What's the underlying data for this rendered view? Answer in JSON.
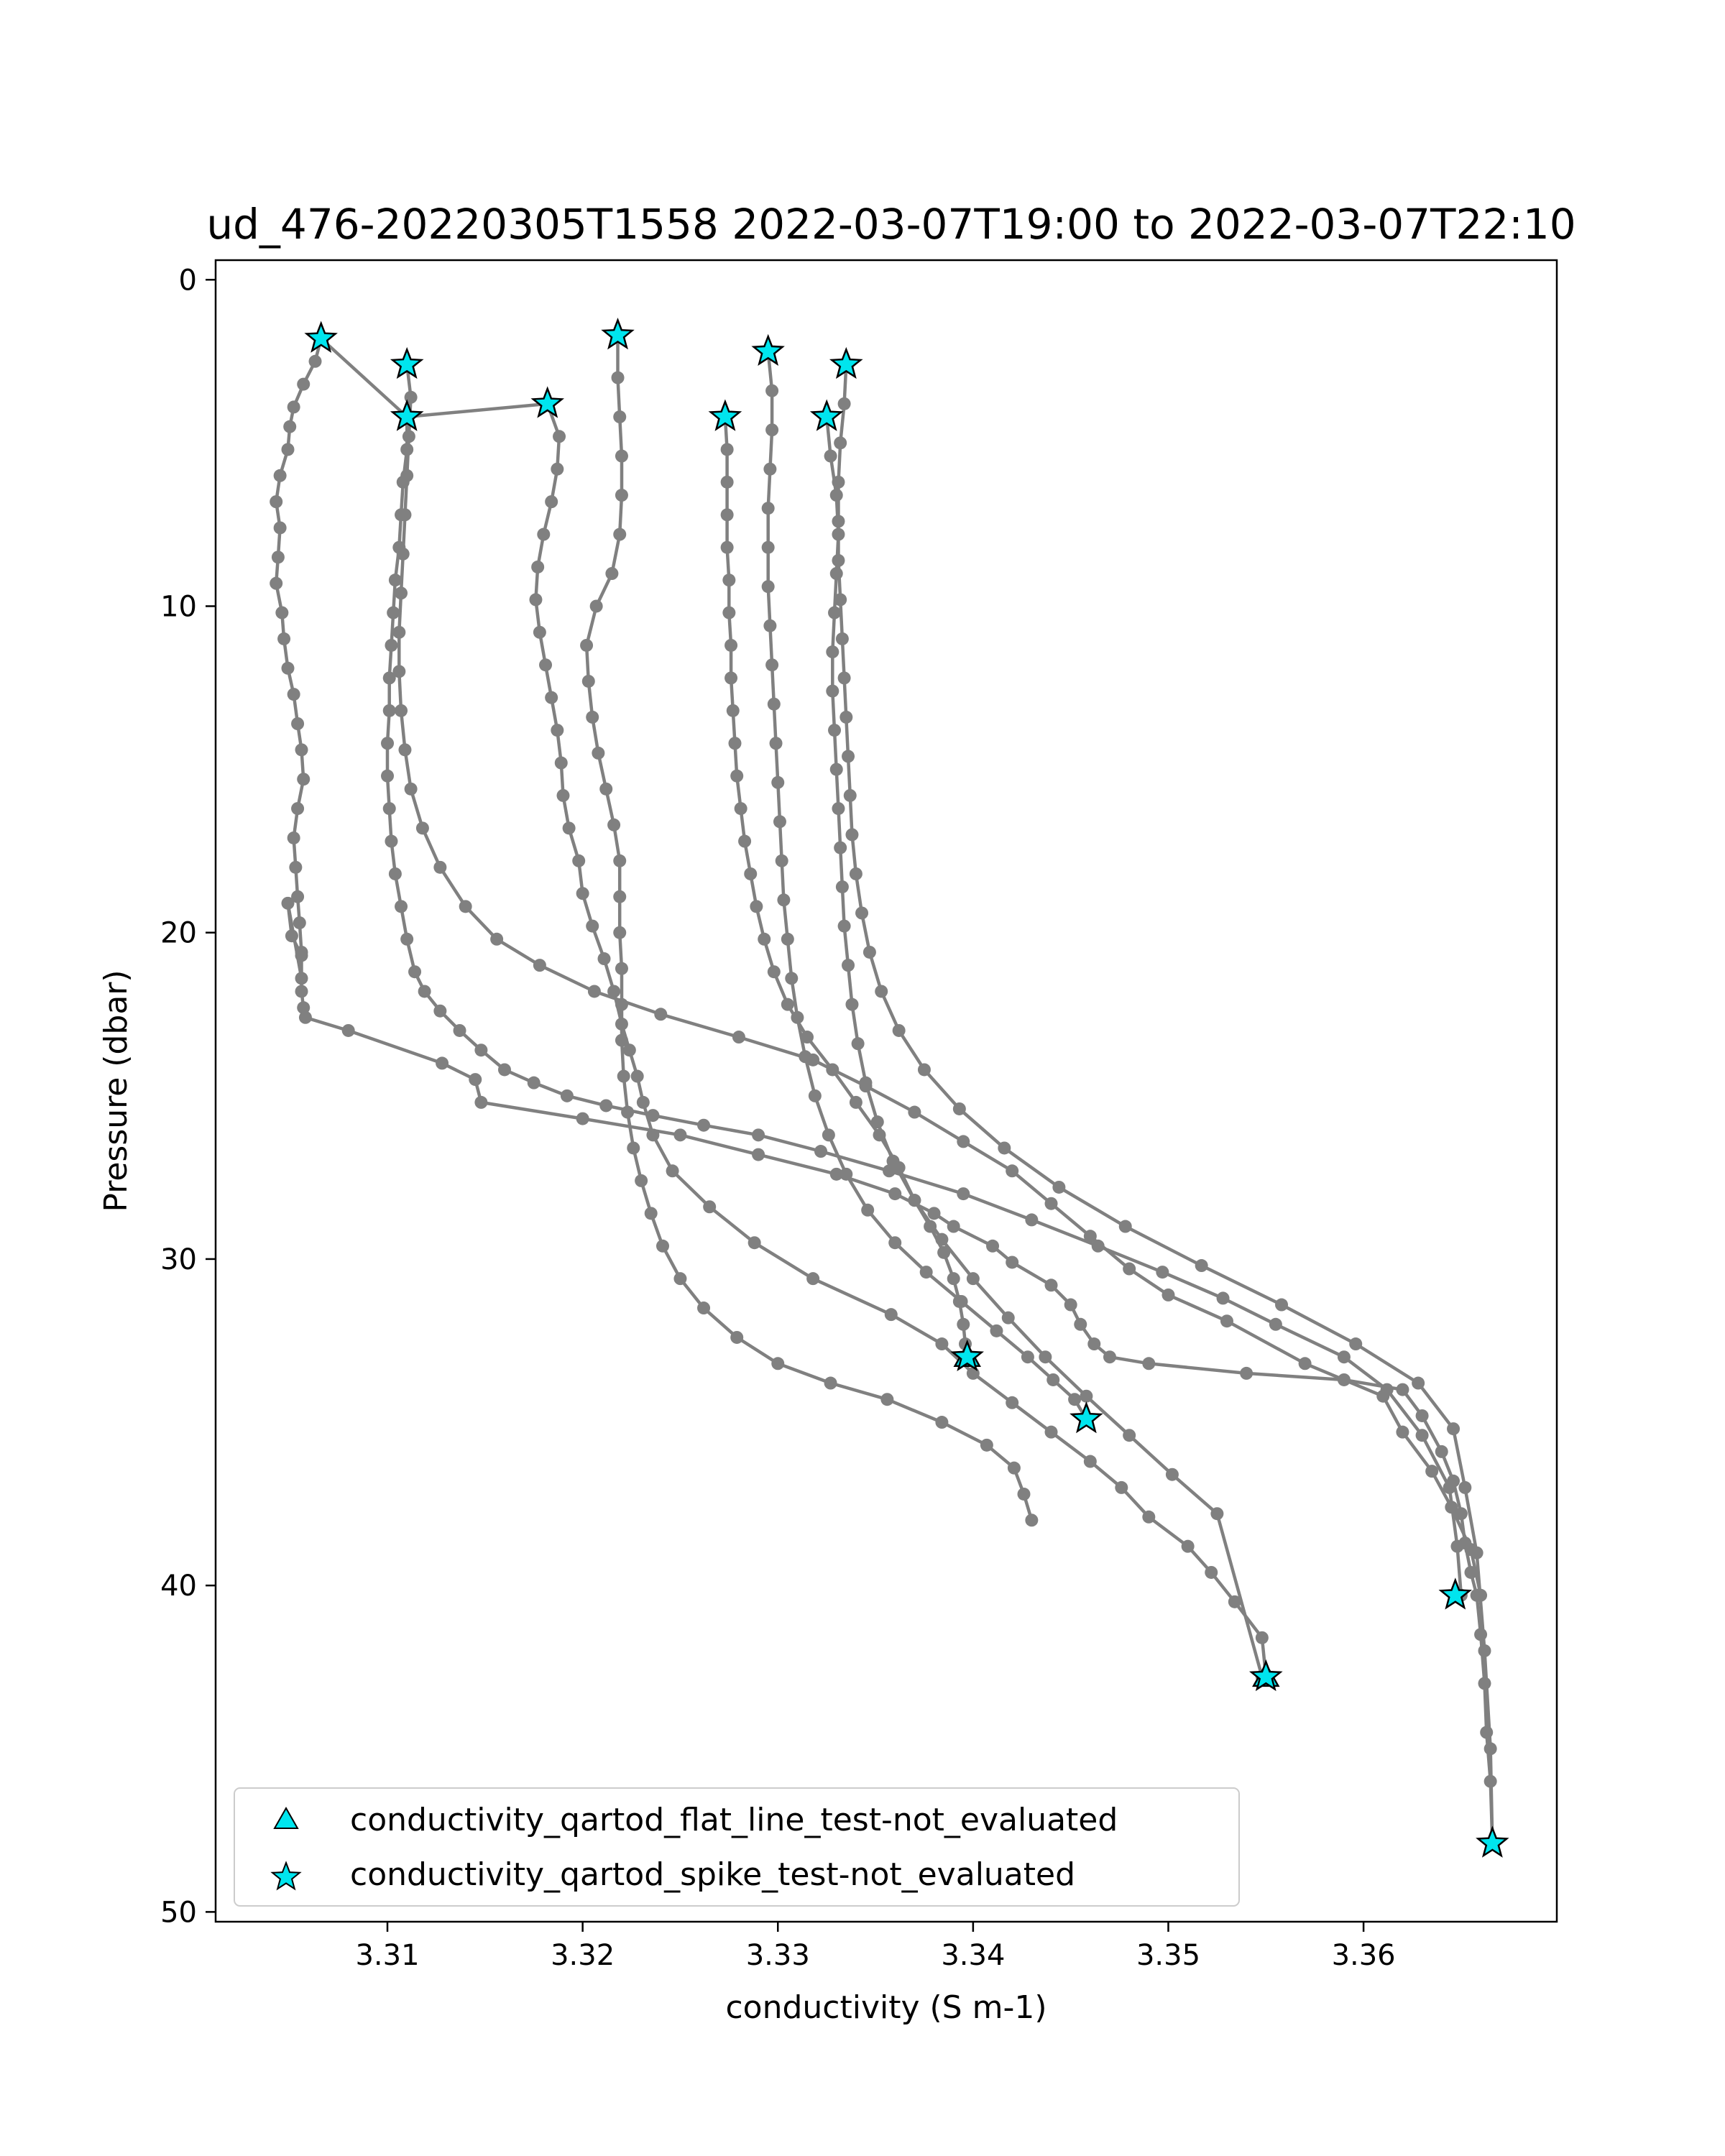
{
  "chart_data": {
    "type": "line",
    "title": "ud_476-20220305T1558 2022-03-07T19:00 to 2022-03-07T22:10",
    "xlabel": "conductivity (S m-1)",
    "ylabel": "Pressure (dbar)",
    "xlim": [
      3.3012,
      3.3699
    ],
    "ylim": [
      50.3,
      -0.6
    ],
    "y_inverted": true,
    "xticks": [
      3.31,
      3.32,
      3.33,
      3.34,
      3.35,
      3.36
    ],
    "xtick_labels": [
      "3.31",
      "3.32",
      "3.33",
      "3.34",
      "3.35",
      "3.36"
    ],
    "yticks": [
      0,
      10,
      20,
      30,
      40,
      50
    ],
    "ytick_labels": [
      "0",
      "10",
      "20",
      "30",
      "40",
      "50"
    ],
    "grid": false,
    "legend_position": "lower-left",
    "colors": {
      "profile_line": "#808080",
      "marker_fill": "#00e5ee",
      "marker_edge": "#000000"
    },
    "series": [
      {
        "x": [
          3.3066,
          3.3063,
          3.3057,
          3.3052,
          3.305,
          3.3049,
          3.3045,
          3.3043,
          3.3045,
          3.3044,
          3.3043,
          3.3046,
          3.3047,
          3.3049,
          3.3052,
          3.3054,
          3.3056,
          3.3057,
          3.3054,
          3.3052,
          3.3053,
          3.3054,
          3.3055,
          3.3056,
          3.3056,
          3.3049,
          3.3051,
          3.3056,
          3.3056,
          3.3057,
          3.3058,
          3.308,
          3.3128,
          3.3145,
          3.3148,
          3.32,
          3.325,
          3.329,
          3.333,
          3.336,
          3.338,
          3.339,
          3.341,
          3.342,
          3.344,
          3.345,
          3.3455,
          3.3462,
          3.347,
          3.349,
          3.354,
          3.359,
          3.362,
          3.363,
          3.364,
          3.3646,
          3.365,
          3.3652,
          3.3655,
          3.3658,
          3.366,
          3.3662,
          3.3663,
          3.3665,
          3.3666
        ],
        "y": [
          1.8,
          2.5,
          3.2,
          3.9,
          4.5,
          5.2,
          6.0,
          6.8,
          7.6,
          8.5,
          9.3,
          10.2,
          11.0,
          11.9,
          12.7,
          13.6,
          14.4,
          15.3,
          16.2,
          17.1,
          18.0,
          18.9,
          19.7,
          20.6,
          21.4,
          19.1,
          20.1,
          20.7,
          21.8,
          22.3,
          22.6,
          23.0,
          24.0,
          24.5,
          25.2,
          25.7,
          26.2,
          26.8,
          27.4,
          28.0,
          28.6,
          29.0,
          29.6,
          30.1,
          30.8,
          31.4,
          32.0,
          32.6,
          33.0,
          33.2,
          33.5,
          33.7,
          34.0,
          34.8,
          35.9,
          36.8,
          37.8,
          38.7,
          39.6,
          40.3,
          41.5,
          43.0,
          44.5,
          46.0,
          47.9
        ]
      },
      {
        "x": [
          3.3066,
          3.311,
          3.311,
          3.3108,
          3.3107,
          3.3106,
          3.3104,
          3.3103,
          3.3102,
          3.3101,
          3.3101,
          3.31,
          3.31,
          3.3101,
          3.3102,
          3.3104,
          3.3107,
          3.311,
          3.3114,
          3.3119,
          3.3127,
          3.3137,
          3.3148,
          3.316,
          3.3175,
          3.3192,
          3.3212,
          3.3236,
          3.3262,
          3.329,
          3.3322,
          3.3357,
          3.3395,
          3.343,
          3.3464,
          3.3497,
          3.3528,
          3.3555,
          3.359,
          3.3612,
          3.363,
          3.3644,
          3.3648,
          3.365
        ],
        "y": [
          1.8,
          4.2,
          5.2,
          6.2,
          7.2,
          8.2,
          9.2,
          10.2,
          11.2,
          12.2,
          13.2,
          14.2,
          15.2,
          16.2,
          17.2,
          18.2,
          19.2,
          20.2,
          21.2,
          21.8,
          22.4,
          23.0,
          23.6,
          24.2,
          24.6,
          25.0,
          25.3,
          25.6,
          25.9,
          26.2,
          26.7,
          27.3,
          28.0,
          28.8,
          29.6,
          30.4,
          31.2,
          32.0,
          33.0,
          34.0,
          35.4,
          37.0,
          38.8,
          40.3
        ]
      },
      {
        "x": [
          3.311,
          3.3112,
          3.3111,
          3.311,
          3.3109,
          3.3108,
          3.3107,
          3.3106,
          3.3106,
          3.3107,
          3.3109,
          3.3112,
          3.3118,
          3.3127,
          3.314,
          3.3156,
          3.3178,
          3.3206,
          3.324,
          3.328,
          3.3318,
          3.3345,
          3.337,
          3.3395,
          3.342,
          3.344,
          3.346,
          3.348,
          3.35,
          3.353,
          3.357,
          3.361,
          3.362,
          3.3635,
          3.3645,
          3.3655,
          3.366
        ],
        "y": [
          2.6,
          3.6,
          4.8,
          6.0,
          7.2,
          8.4,
          9.6,
          10.8,
          12.0,
          13.2,
          14.4,
          15.6,
          16.8,
          18.0,
          19.2,
          20.2,
          21.0,
          21.8,
          22.5,
          23.2,
          23.9,
          24.7,
          25.5,
          26.4,
          27.3,
          28.3,
          29.3,
          30.3,
          31.1,
          31.9,
          33.2,
          34.2,
          35.3,
          36.5,
          37.6,
          38.9,
          40.3
        ]
      },
      {
        "x": [
          3.311,
          3.3182,
          3.3188,
          3.3187,
          3.3184,
          3.318,
          3.3177,
          3.3176,
          3.3178,
          3.3181,
          3.3184,
          3.3187,
          3.3189,
          3.319,
          3.3193,
          3.3198,
          3.32,
          3.3205,
          3.3211,
          3.3216,
          3.322,
          3.3224,
          3.3228,
          3.3231,
          3.3236,
          3.3246,
          3.3265,
          3.3288,
          3.3318,
          3.3358,
          3.3384,
          3.34,
          3.342,
          3.344,
          3.346,
          3.3476,
          3.349,
          3.351,
          3.3522,
          3.3534,
          3.3548,
          3.355
        ],
        "y": [
          4.2,
          3.8,
          4.8,
          5.8,
          6.8,
          7.8,
          8.8,
          9.8,
          10.8,
          11.8,
          12.8,
          13.8,
          14.8,
          15.8,
          16.8,
          17.8,
          18.8,
          19.8,
          20.8,
          21.8,
          22.8,
          23.6,
          24.4,
          25.2,
          26.2,
          27.3,
          28.4,
          29.5,
          30.6,
          31.7,
          32.6,
          33.5,
          34.4,
          35.3,
          36.2,
          37.0,
          37.9,
          38.8,
          39.6,
          40.5,
          41.6,
          42.8
        ]
      },
      {
        "x": [
          3.3218,
          3.3218,
          3.3219,
          3.322,
          3.322,
          3.3219,
          3.3215,
          3.3207,
          3.3202,
          3.3203,
          3.3205,
          3.3208,
          3.3212,
          3.3216,
          3.3219,
          3.3219,
          3.3219,
          3.322,
          3.322,
          3.322,
          3.3221,
          3.3223,
          3.3226,
          3.323,
          3.3235,
          3.3241,
          3.325,
          3.3262,
          3.3279,
          3.33,
          3.3327,
          3.3356,
          3.3384,
          3.3407,
          3.3421,
          3.3426,
          3.343
        ],
        "y": [
          1.7,
          3.0,
          4.2,
          5.4,
          6.6,
          7.8,
          9.0,
          10.0,
          11.2,
          12.3,
          13.4,
          14.5,
          15.6,
          16.7,
          17.8,
          18.9,
          20.0,
          21.1,
          22.2,
          23.3,
          24.4,
          25.5,
          26.6,
          27.6,
          28.6,
          29.6,
          30.6,
          31.5,
          32.4,
          33.2,
          33.8,
          34.3,
          35.0,
          35.7,
          36.4,
          37.2,
          38.0
        ]
      },
      {
        "x": [
          3.3273,
          3.3274,
          3.3274,
          3.3274,
          3.3274,
          3.3275,
          3.3275,
          3.3276,
          3.3276,
          3.3277,
          3.3278,
          3.3279,
          3.3281,
          3.3283,
          3.3286,
          3.3289,
          3.3293,
          3.3298,
          3.3305,
          3.3315,
          3.3328,
          3.334,
          3.3352,
          3.3362,
          3.337,
          3.3378,
          3.3385,
          3.339,
          3.3393,
          3.3395,
          3.3396,
          3.3397
        ],
        "y": [
          4.2,
          5.2,
          6.2,
          7.2,
          8.2,
          9.2,
          10.2,
          11.2,
          12.2,
          13.2,
          14.2,
          15.2,
          16.2,
          17.2,
          18.2,
          19.2,
          20.2,
          21.2,
          22.2,
          23.2,
          24.2,
          25.2,
          26.2,
          27.2,
          28.2,
          29.0,
          29.8,
          30.6,
          31.3,
          32.0,
          32.6,
          33.0
        ]
      },
      {
        "x": [
          3.3295,
          3.3297,
          3.3297,
          3.3296,
          3.3295,
          3.3295,
          3.3295,
          3.3296,
          3.3297,
          3.3298,
          3.3299,
          3.33,
          3.3301,
          3.3302,
          3.3303,
          3.3305,
          3.3307,
          3.331,
          3.3314,
          3.3319,
          3.3326,
          3.3335,
          3.3346,
          3.336,
          3.3376,
          3.3394,
          3.3412,
          3.3428,
          3.3441,
          3.3452,
          3.3458
        ],
        "y": [
          2.2,
          3.4,
          4.6,
          5.8,
          7.0,
          8.2,
          9.4,
          10.6,
          11.8,
          13.0,
          14.2,
          15.4,
          16.6,
          17.8,
          19.0,
          20.2,
          21.4,
          22.6,
          23.8,
          25.0,
          26.2,
          27.4,
          28.5,
          29.5,
          30.4,
          31.3,
          32.2,
          33.0,
          33.7,
          34.3,
          34.9
        ]
      },
      {
        "x": [
          3.3325,
          3.3327,
          3.333,
          3.3331,
          3.333,
          3.3329,
          3.3328,
          3.3328,
          3.3329,
          3.333,
          3.3331,
          3.3332,
          3.3333,
          3.3334,
          3.3336,
          3.3338,
          3.3341,
          3.3345,
          3.3351,
          3.3359,
          3.337,
          3.3384,
          3.34,
          3.3418,
          3.3437,
          3.3458,
          3.348,
          3.3502,
          3.3525,
          3.3548
        ],
        "y": [
          4.2,
          5.4,
          6.6,
          7.8,
          9.0,
          10.2,
          11.4,
          12.6,
          13.8,
          15.0,
          16.2,
          17.4,
          18.6,
          19.8,
          21.0,
          22.2,
          23.4,
          24.6,
          25.8,
          27.0,
          28.2,
          29.4,
          30.6,
          31.8,
          33.0,
          34.2,
          35.4,
          36.6,
          37.8,
          42.8
        ]
      },
      {
        "x": [
          3.3335,
          3.3334,
          3.3332,
          3.3331,
          3.3331,
          3.3331,
          3.3332,
          3.3333,
          3.3334,
          3.3335,
          3.3336,
          3.3337,
          3.3338,
          3.334,
          3.3343,
          3.3347,
          3.3353,
          3.3362,
          3.3375,
          3.3393,
          3.3416,
          3.3444,
          3.3478,
          3.3517,
          3.3558,
          3.3596,
          3.3628,
          3.3646,
          3.3652,
          3.3658,
          3.3662,
          3.3665,
          3.3666
        ],
        "y": [
          2.6,
          3.8,
          5.0,
          6.2,
          7.4,
          8.6,
          9.8,
          11.0,
          12.2,
          13.4,
          14.6,
          15.8,
          17.0,
          18.2,
          19.4,
          20.6,
          21.8,
          23.0,
          24.2,
          25.4,
          26.6,
          27.8,
          29.0,
          30.2,
          31.4,
          32.6,
          33.8,
          35.2,
          37.0,
          39.0,
          42.0,
          45.0,
          47.9
        ]
      }
    ],
    "flagged_points": {
      "conductivity_qartod_spike_test-not_evaluated": [
        {
          "x": 3.3066,
          "y": 1.8
        },
        {
          "x": 3.311,
          "y": 2.6
        },
        {
          "x": 3.311,
          "y": 4.2
        },
        {
          "x": 3.3182,
          "y": 3.8
        },
        {
          "x": 3.3218,
          "y": 1.7
        },
        {
          "x": 3.3273,
          "y": 4.2
        },
        {
          "x": 3.3295,
          "y": 2.2
        },
        {
          "x": 3.3325,
          "y": 4.2
        },
        {
          "x": 3.3335,
          "y": 2.6
        },
        {
          "x": 3.3397,
          "y": 33.0
        },
        {
          "x": 3.3458,
          "y": 34.9
        },
        {
          "x": 3.355,
          "y": 42.8
        },
        {
          "x": 3.3647,
          "y": 40.3
        },
        {
          "x": 3.3666,
          "y": 47.9
        }
      ],
      "conductivity_qartod_flat_line_test-not_evaluated": [
        {
          "x": 3.3397,
          "y": 33.0
        },
        {
          "x": 3.355,
          "y": 42.8
        }
      ]
    },
    "legend": [
      {
        "label": "conductivity_qartod_flat_line_test-not_evaluated",
        "marker": "triangle"
      },
      {
        "label": "conductivity_qartod_spike_test-not_evaluated",
        "marker": "star"
      }
    ]
  }
}
